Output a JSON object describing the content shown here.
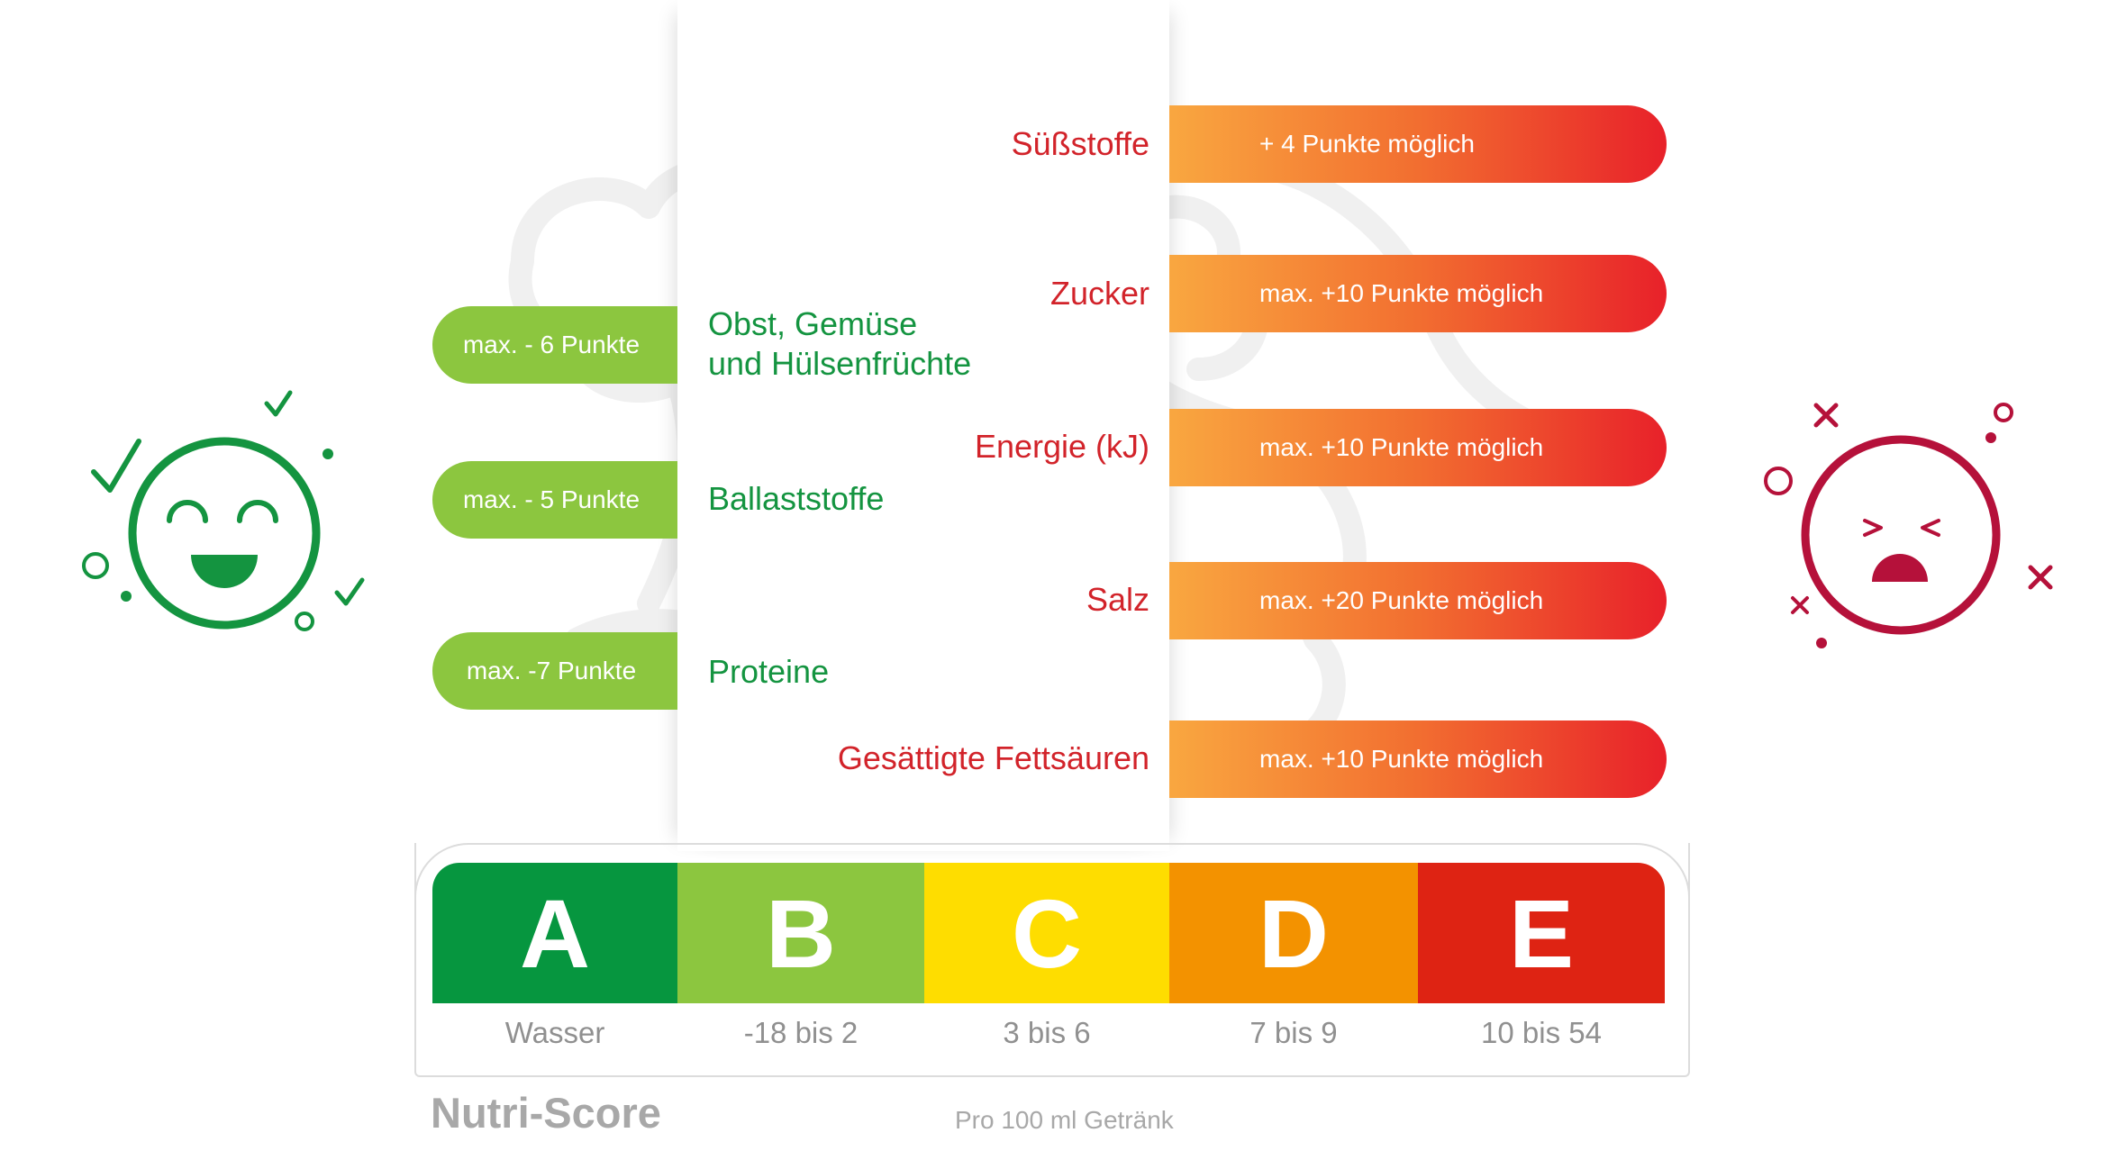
{
  "colors": {
    "green_pill": "#8cc63f",
    "green_text": "#149440",
    "red_text": "#d2232a",
    "bar_start": "#f9a740",
    "bar_end": "#e8212a",
    "grade_a": "#06963f",
    "grade_b": "#8cc63f",
    "grade_c": "#fedd00",
    "grade_d": "#f39200",
    "grade_e": "#de2313",
    "happy_face": "#149440",
    "sad_face": "#b5113a"
  },
  "negative_points": [
    {
      "pill": "max. - 6 Punkte",
      "label": "Obst, Gemüse\nund Hülsenfrüchte"
    },
    {
      "pill": "max. - 5 Punkte",
      "label": "Ballaststoffe"
    },
    {
      "pill": "max. -7 Punkte",
      "label": "Proteine"
    }
  ],
  "positive_points": [
    {
      "label": "Süßstoffe",
      "bar": "+ 4 Punkte möglich"
    },
    {
      "label": "Zucker",
      "bar": "max. +10 Punkte möglich"
    },
    {
      "label": "Energie (kJ)",
      "bar": "max. +10 Punkte möglich"
    },
    {
      "label": "Salz",
      "bar": "max. +20 Punkte möglich"
    },
    {
      "label": "Gesättigte Fettsäuren",
      "bar": "max. +10 Punkte möglich"
    }
  ],
  "grades": [
    {
      "letter": "A",
      "range": "Wasser"
    },
    {
      "letter": "B",
      "range": "-18 bis 2"
    },
    {
      "letter": "C",
      "range": "3 bis 6"
    },
    {
      "letter": "D",
      "range": "7 bis 9"
    },
    {
      "letter": "E",
      "range": "10 bis 54"
    }
  ],
  "footer": {
    "brand": "Nutri-Score",
    "note": "Pro 100 ml Getränk"
  },
  "icons": {
    "happy": "happy-face-icon",
    "sad": "sad-face-icon"
  }
}
